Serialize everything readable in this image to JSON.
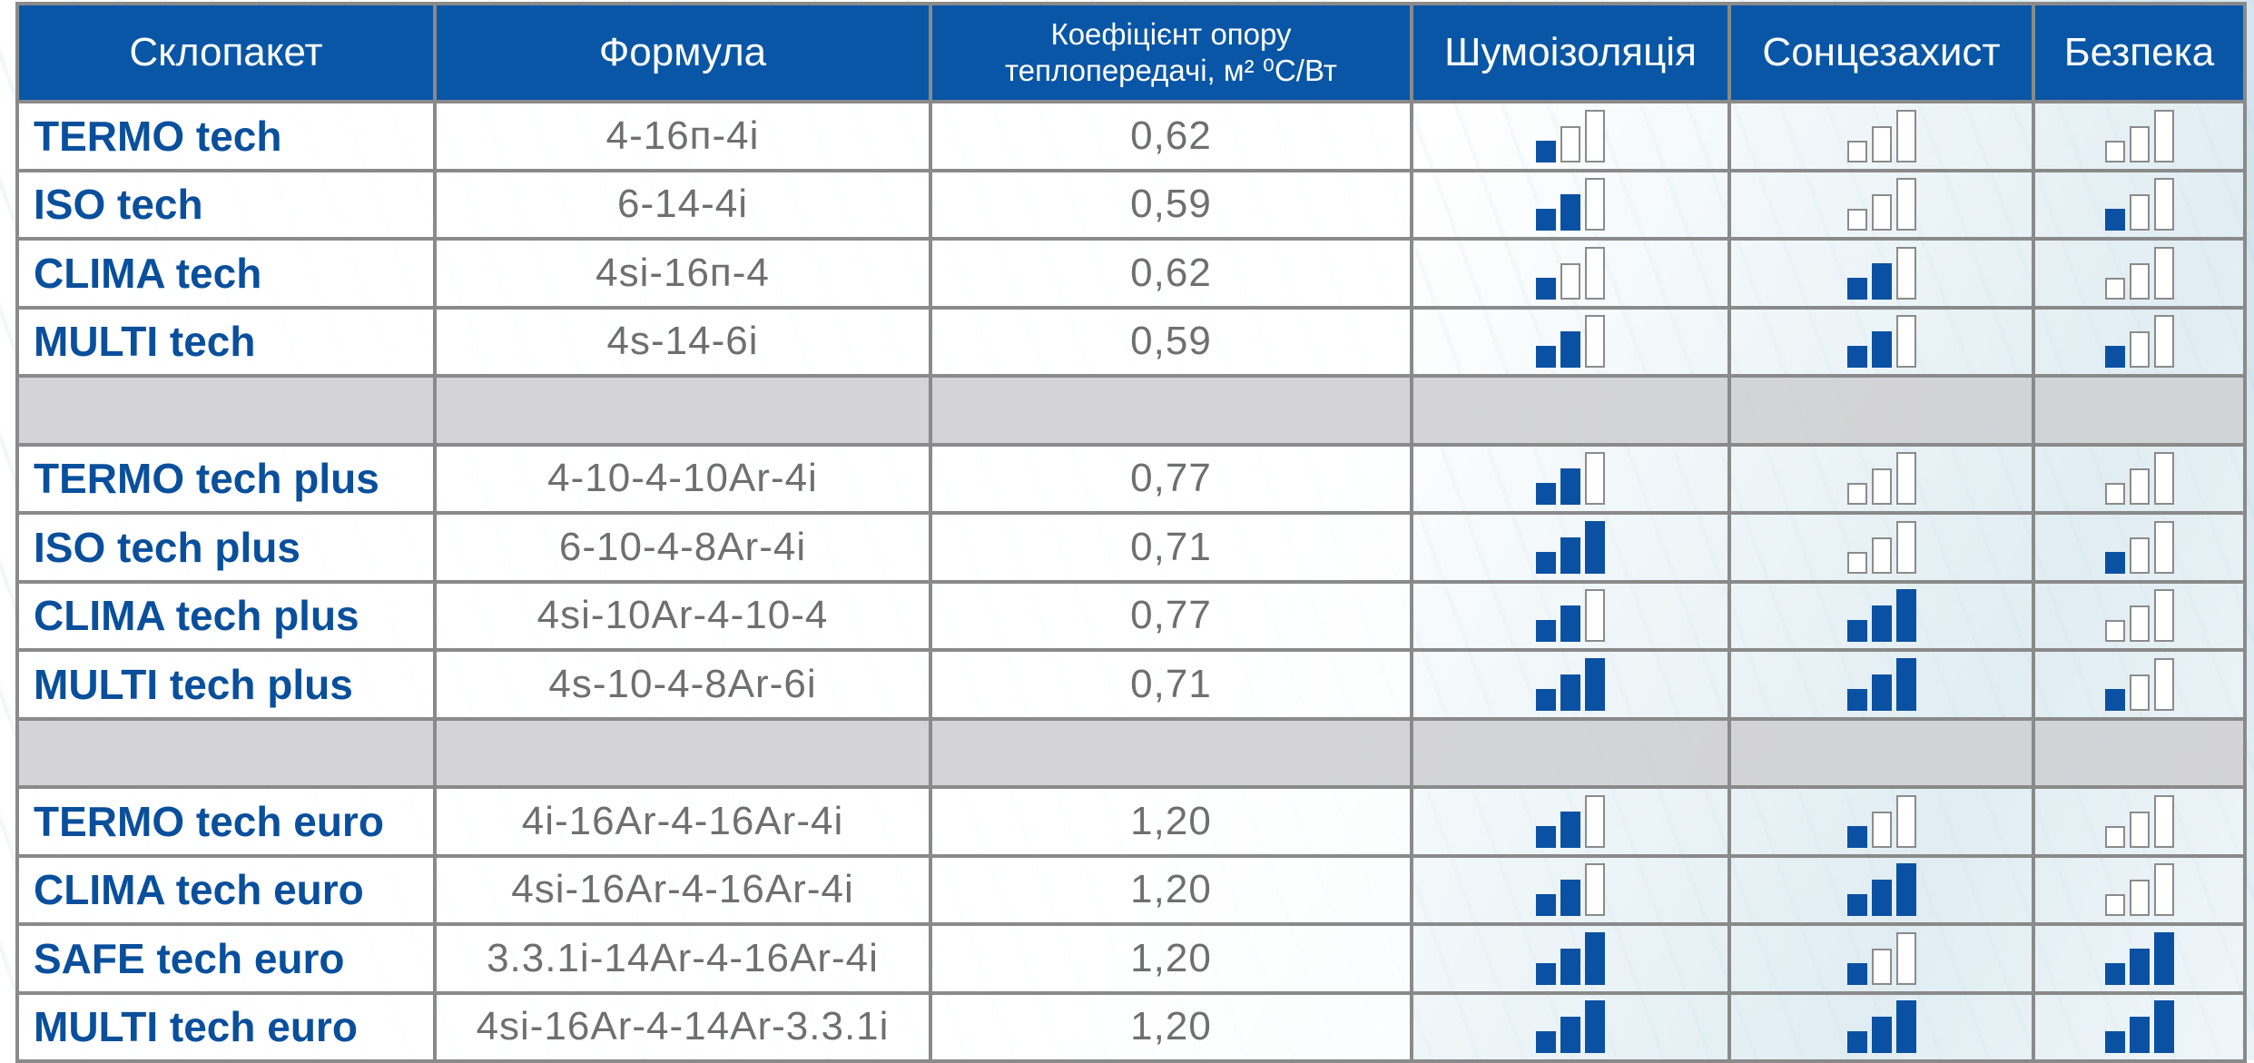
{
  "columns": {
    "unit": "Склопакет",
    "formula": "Формула",
    "coef_line1": "Коефіцієнт опору",
    "coef_line2": "теплопередачі, м² ⁰С/Вт",
    "noise": "Шумоізоляція",
    "sun": "Сонцезахист",
    "safety": "Безпека"
  },
  "rating_max": 3,
  "colors": {
    "header_bg": "#0a56a6",
    "name_text": "#0a4f9c",
    "bar_filled": "#0b51a3",
    "bar_empty_border": "#8b8b8b",
    "separator_row": "#d2d2d4"
  },
  "groups": [
    {
      "rows": [
        {
          "name": "TERMO tech",
          "formula": "4-16п-4i",
          "coef": "0,62",
          "noise": 1,
          "sun": 0,
          "safety": 0
        },
        {
          "name": "ISO tech",
          "formula": "6-14-4i",
          "coef": "0,59",
          "noise": 2,
          "sun": 0,
          "safety": 1
        },
        {
          "name": "CLIMA tech",
          "formula": "4si-16п-4",
          "coef": "0,62",
          "noise": 1,
          "sun": 2,
          "safety": 0
        },
        {
          "name": "MULTI tech",
          "formula": "4s-14-6i",
          "coef": "0,59",
          "noise": 2,
          "sun": 2,
          "safety": 1
        }
      ]
    },
    {
      "rows": [
        {
          "name": "TERMO tech plus",
          "formula": "4-10-4-10Ar-4i",
          "coef": "0,77",
          "noise": 2,
          "sun": 0,
          "safety": 0
        },
        {
          "name": "ISO tech  plus",
          "formula": "6-10-4-8Ar-4i",
          "coef": "0,71",
          "noise": 3,
          "sun": 0,
          "safety": 1
        },
        {
          "name": "CLIMA tech plus",
          "formula": "4si-10Ar-4-10-4",
          "coef": "0,77",
          "noise": 2,
          "sun": 3,
          "safety": 0
        },
        {
          "name": "MULTI tech plus",
          "formula": "4s-10-4-8Ar-6i",
          "coef": "0,71",
          "noise": 3,
          "sun": 3,
          "safety": 1
        }
      ]
    },
    {
      "rows": [
        {
          "name": "TERMO tech euro",
          "formula": "4i-16Ar-4-16Ar-4i",
          "coef": "1,20",
          "noise": 2,
          "sun": 1,
          "safety": 0
        },
        {
          "name": "CLIMA tech euro",
          "formula": "4si-16Ar-4-16Ar-4i",
          "coef": "1,20",
          "noise": 2,
          "sun": 3,
          "safety": 0
        },
        {
          "name": "SAFE tech euro",
          "formula": "3.3.1i-14Ar-4-16Ar-4i",
          "coef": "1,20",
          "noise": 3,
          "sun": 1,
          "safety": 3
        },
        {
          "name": "MULTI tech euro",
          "formula": "4si-16Ar-4-14Ar-3.3.1i",
          "coef": "1,20",
          "noise": 3,
          "sun": 3,
          "safety": 3
        }
      ]
    }
  ]
}
